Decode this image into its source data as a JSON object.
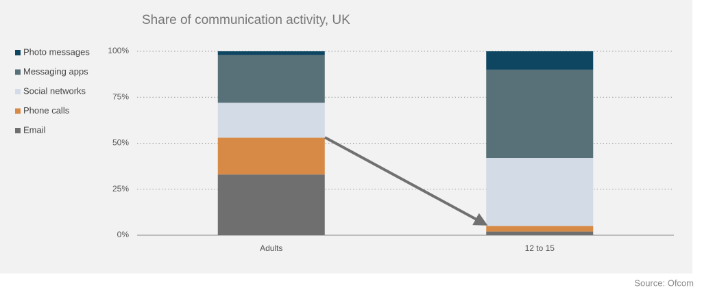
{
  "chart_data": {
    "type": "stacked-bar",
    "title": "Share of communication activity, UK",
    "categories": [
      "Adults",
      "12 to 15"
    ],
    "series": [
      {
        "name": "Email",
        "color": "#6f6f6f",
        "values": [
          33,
          2
        ]
      },
      {
        "name": "Phone calls",
        "color": "#d68a45",
        "values": [
          20,
          3
        ]
      },
      {
        "name": "Social networks",
        "color": "#d3dbe6",
        "values": [
          19,
          37
        ]
      },
      {
        "name": "Messaging apps",
        "color": "#587077",
        "values": [
          26,
          48
        ]
      },
      {
        "name": "Photo messages",
        "color": "#0e4560",
        "values": [
          2,
          10
        ]
      }
    ],
    "ylim": [
      0,
      100
    ],
    "yticks": [
      {
        "value": 0,
        "label": "0%"
      },
      {
        "value": 25,
        "label": "25%"
      },
      {
        "value": 50,
        "label": "50%"
      },
      {
        "value": 75,
        "label": "75%"
      },
      {
        "value": 100,
        "label": "100%"
      }
    ],
    "grid": true,
    "legend": "left",
    "source": "Source: Ofcom"
  }
}
